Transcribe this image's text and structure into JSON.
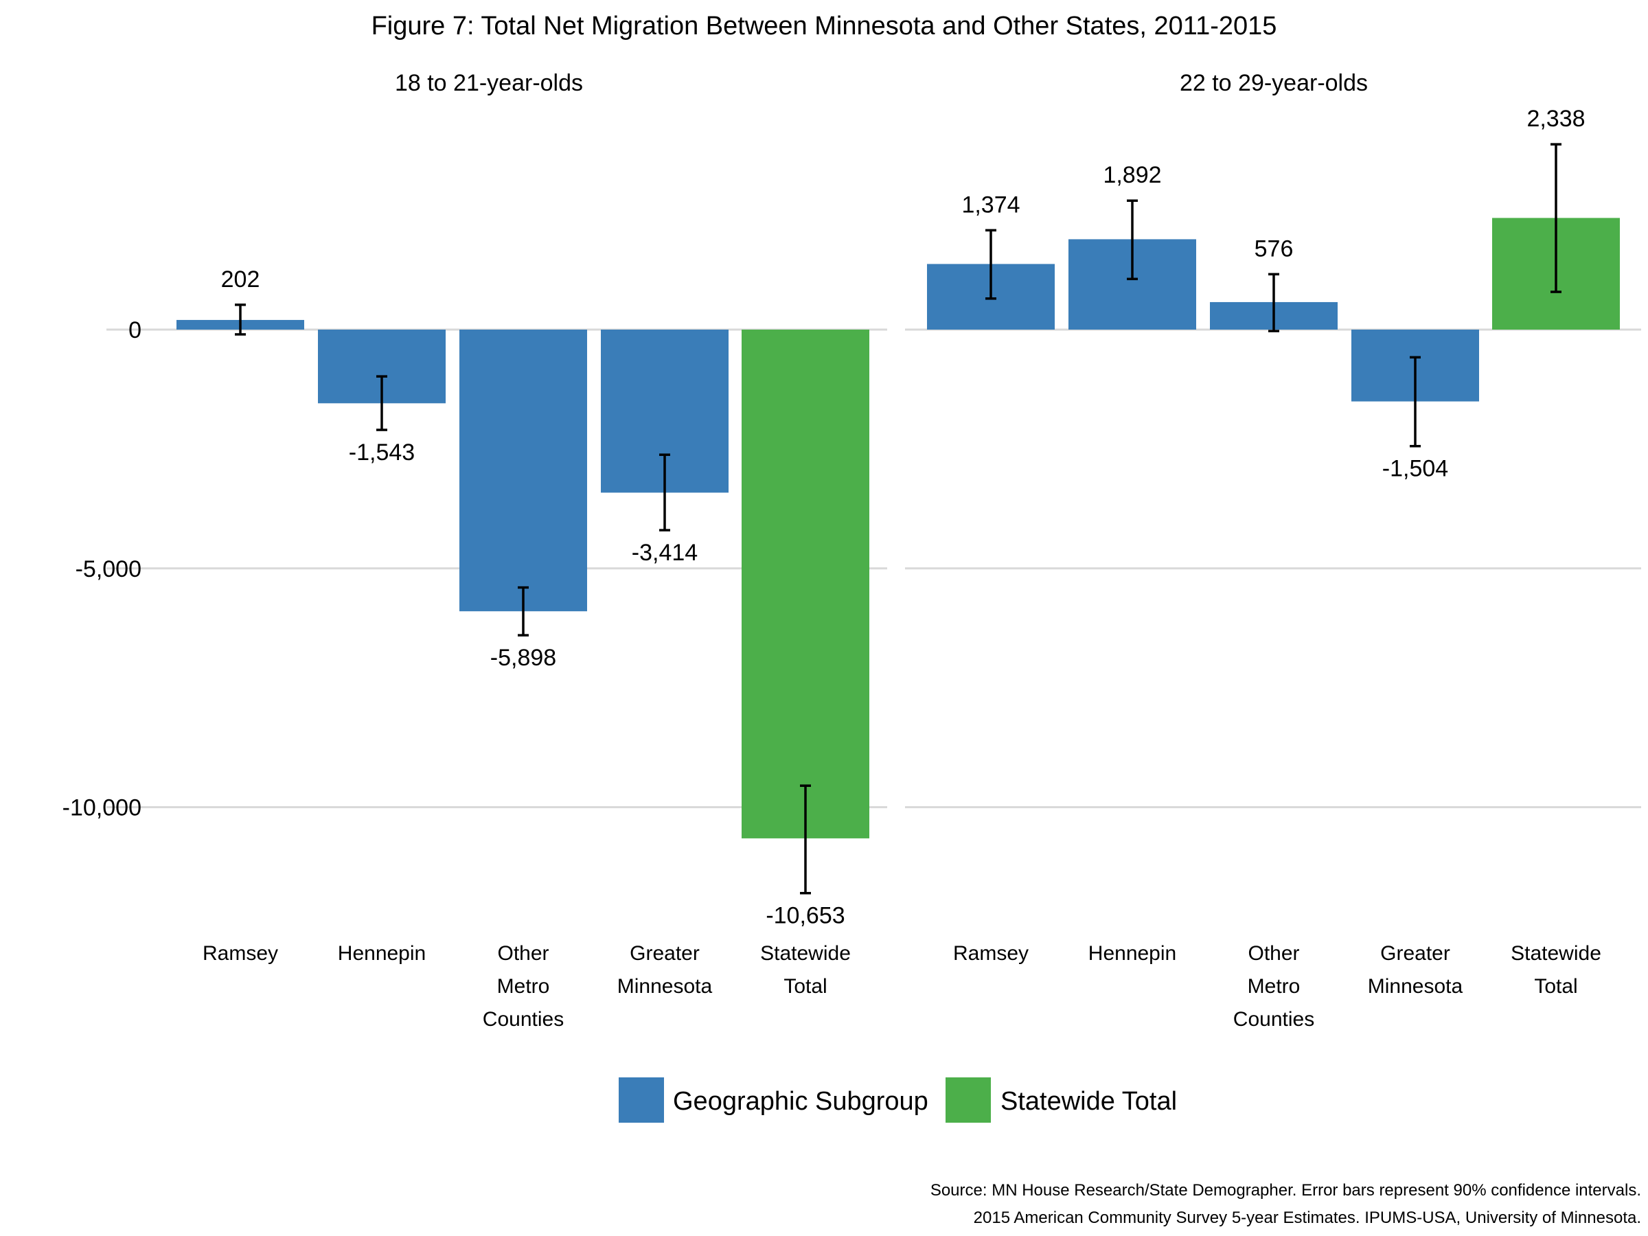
{
  "chart_data": {
    "type": "bar",
    "title": "Figure 7: Total Net Migration Between Minnesota and Other States, 2011-2015",
    "ylabel": "",
    "xlabel": "",
    "ylim": [
      -12000,
      4000
    ],
    "yticks": [
      0,
      -5000,
      -10000
    ],
    "ytick_labels": [
      "0",
      "-5,000",
      "-10,000"
    ],
    "grid": true,
    "legend_position": "bottom",
    "colors": {
      "Geographic Subgroup": "#3a7db8",
      "Statewide Total": "#4caf4a"
    },
    "legend": [
      "Geographic Subgroup",
      "Statewide Total"
    ],
    "categories": [
      [
        "Ramsey"
      ],
      [
        "Hennepin"
      ],
      [
        "Other",
        "Metro",
        "Counties"
      ],
      [
        "Greater",
        "Minnesota"
      ],
      [
        "Statewide",
        "Total"
      ]
    ],
    "panels": [
      {
        "name": "18 to 21-year-olds",
        "values": [
          202,
          -1543,
          -5898,
          -3414,
          -10653
        ],
        "labels": [
          "202",
          "-1,543",
          "-5,898",
          "-3,414",
          "-10,653"
        ],
        "groups": [
          "Geographic Subgroup",
          "Geographic Subgroup",
          "Geographic Subgroup",
          "Geographic Subgroup",
          "Statewide Total"
        ],
        "error_low": [
          -100,
          -2100,
          -6400,
          -4200,
          -11800
        ],
        "error_high": [
          520,
          -980,
          -5400,
          -2620,
          -9550
        ]
      },
      {
        "name": "22 to 29-year-olds",
        "values": [
          1374,
          1892,
          576,
          -1504,
          2338
        ],
        "labels": [
          "1,374",
          "1,892",
          "576",
          "-1,504",
          "2,338"
        ],
        "groups": [
          "Geographic Subgroup",
          "Geographic Subgroup",
          "Geographic Subgroup",
          "Geographic Subgroup",
          "Statewide Total"
        ],
        "error_low": [
          650,
          1060,
          -30,
          -2440,
          790
        ],
        "error_high": [
          2080,
          2700,
          1160,
          -580,
          3880
        ]
      }
    ],
    "source": [
      "Source: MN House Research/State Demographer. Error bars represent 90% confidence intervals.",
      "2015 American Community Survey 5-year Estimates. IPUMS-USA, University of Minnesota."
    ]
  }
}
